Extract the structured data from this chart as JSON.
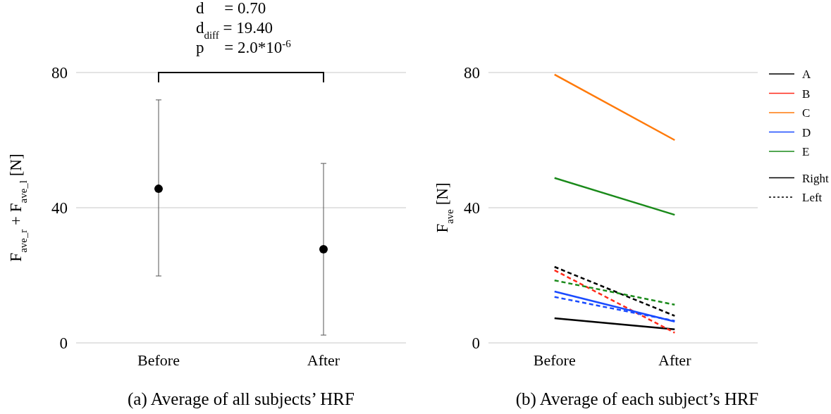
{
  "chart_data": [
    {
      "type": "scatter",
      "title": "(a) Average of all subjects’ HRF",
      "ylabel": "F$_{ave_r}$ + F$_{ave_l}$ [N]",
      "categories": [
        "Before",
        "After"
      ],
      "series": [
        {
          "color": "#000000",
          "values": [
            45.6,
            27.7
          ],
          "errors": [
            [
              19.8,
              71.9
            ],
            [
              2.3,
              53.1
            ]
          ]
        }
      ],
      "ylim": [
        0,
        80
      ],
      "yticks": [
        0,
        40,
        80
      ],
      "grid": "y",
      "marker": "circle",
      "annotations": [
        "d     = 0.70",
        "d$_{diff}$ = 19.40",
        "p     = 2.0*10$^{-6}$"
      ]
    },
    {
      "type": "line",
      "title": "(b) Average of each subject’s HRF",
      "ylabel": "F$_{ave}$ [N]",
      "categories": [
        "Before",
        "After"
      ],
      "series": [
        {
          "name": "A",
          "color": "#000000",
          "line_style": "solid",
          "values": [
            7.3,
            4.0
          ]
        },
        {
          "color": "#000000",
          "line_style": "dashed",
          "values": [
            22.5,
            8.0
          ]
        },
        {
          "name": "B",
          "color": "#ff2a1a",
          "line_style": "dashed",
          "values": [
            21.5,
            3.0
          ]
        },
        {
          "name": "C",
          "color": "#ff7a0a",
          "line_style": "solid",
          "values": [
            79.4,
            60.0
          ]
        },
        {
          "name": "D",
          "color": "#1a4bff",
          "line_style": "solid",
          "values": [
            15.2,
            6.3
          ]
        },
        {
          "color": "#1a4bff",
          "line_style": "dashed",
          "values": [
            13.6,
            6.5
          ]
        },
        {
          "name": "E",
          "color": "#1a8a1a",
          "line_style": "solid",
          "values": [
            48.8,
            37.9
          ]
        },
        {
          "color": "#1a8a1a",
          "line_style": "dashed",
          "values": [
            18.5,
            11.3
          ]
        },
        {
          "name": "Right",
          "color": "#000000",
          "line_style": "solid",
          "values": [
            null,
            null
          ]
        },
        {
          "name": "Left",
          "color": "#000000",
          "line_style": "dotted",
          "values": [
            null,
            null
          ]
        }
      ],
      "ylim": [
        0,
        80
      ],
      "yticks": [
        0,
        40,
        80
      ],
      "grid": "y",
      "legend": "right"
    }
  ]
}
